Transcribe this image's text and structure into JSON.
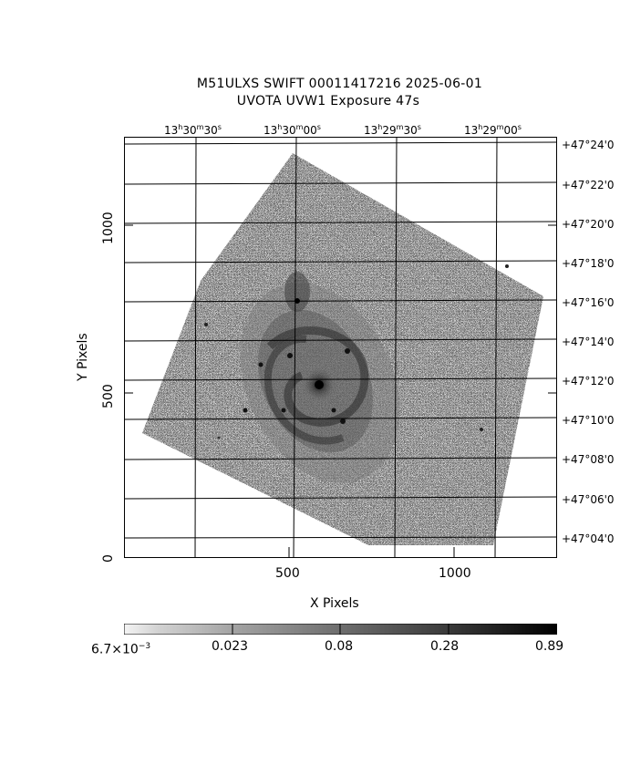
{
  "title": {
    "line1": "M51ULXS SWIFT 00011417216 2025-06-01",
    "line2": "UVOTA UVW1 Exposure        47s"
  },
  "ra_ticks": [
    {
      "h": "13",
      "m": "30",
      "s": "30"
    },
    {
      "h": "13",
      "m": "30",
      "s": "00"
    },
    {
      "h": "13",
      "m": "29",
      "s": "30"
    },
    {
      "h": "13",
      "m": "29",
      "s": "00"
    }
  ],
  "dec_ticks": [
    "+47°24'0",
    "+47°22'0",
    "+47°20'0",
    "+47°18'0",
    "+47°16'0",
    "+47°14'0",
    "+47°12'0",
    "+47°10'0",
    "+47°08'0",
    "+47°06'0",
    "+47°04'0"
  ],
  "x_axis": {
    "label": "X Pixels",
    "ticks": [
      "500",
      "1000"
    ]
  },
  "y_axis": {
    "label": "Y Pixels",
    "ticks": [
      "0",
      "500",
      "1000"
    ]
  },
  "colorbar": {
    "first_base": "6.7×10",
    "first_exp": "−3",
    "ticks": [
      "0.023",
      "0.08",
      "0.28",
      "0.89"
    ]
  }
}
